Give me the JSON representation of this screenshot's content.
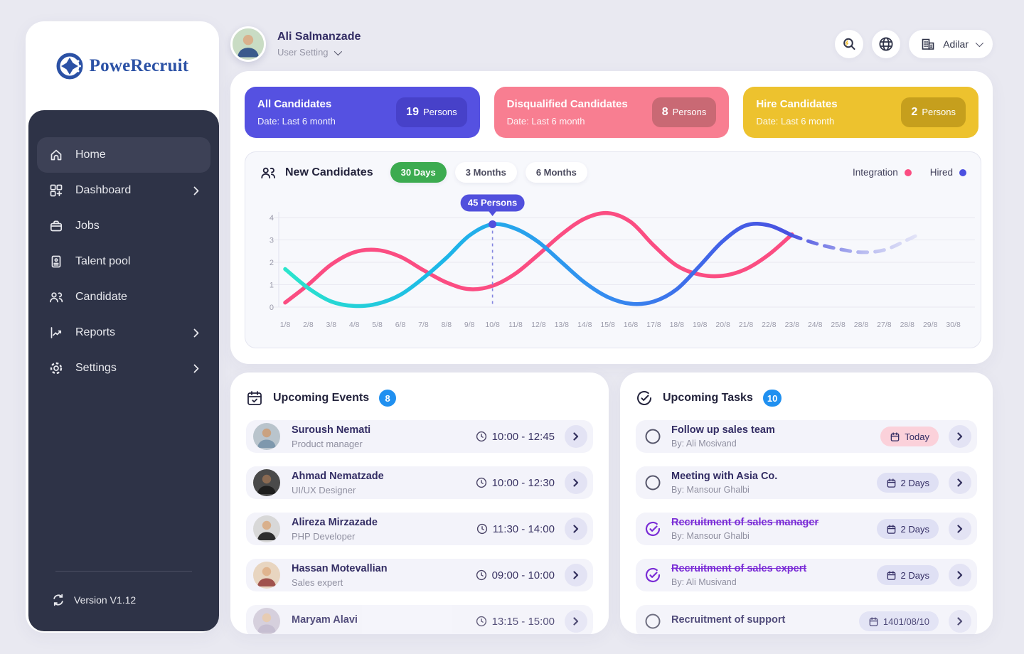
{
  "app": {
    "name": "PoweRecruit",
    "version_label": "Version V1.12"
  },
  "sidebar": {
    "items": [
      {
        "label": "Home",
        "active": true,
        "chevron": false
      },
      {
        "label": "Dashboard",
        "active": false,
        "chevron": true
      },
      {
        "label": "Jobs",
        "active": false,
        "chevron": false
      },
      {
        "label": "Talent pool",
        "active": false,
        "chevron": false
      },
      {
        "label": "Candidate",
        "active": false,
        "chevron": false
      },
      {
        "label": "Reports",
        "active": false,
        "chevron": true
      },
      {
        "label": "Settings",
        "active": false,
        "chevron": true
      }
    ]
  },
  "header": {
    "user_name": "Ali Salmanzade",
    "user_menu_label": "User Setting",
    "company_name": "Adilar"
  },
  "stats": [
    {
      "title": "All Candidates",
      "date": "Date: Last 6 month",
      "count": "19",
      "unit": "Persons",
      "bg": "#5551e1",
      "badge_bg": "#4741c9"
    },
    {
      "title": "Disqualified Candidates",
      "date": "Date: Last 6 month",
      "count": "8",
      "unit": "Persons",
      "bg": "#f87e91",
      "badge_bg": "#c96974"
    },
    {
      "title": "Hire Candidates",
      "date": "Date: Last 6 month",
      "count": "2",
      "unit": "Persons",
      "bg": "#edc22e",
      "badge_bg": "#c69f1d"
    }
  ],
  "chart_data": {
    "type": "line",
    "title": "New Candidates",
    "range_tabs": [
      "30 Days",
      "3 Months",
      "6 Months"
    ],
    "active_tab": "30 Days",
    "categories": [
      "1/8",
      "2/8",
      "3/8",
      "4/8",
      "5/8",
      "6/8",
      "7/8",
      "8/8",
      "9/8",
      "10/8",
      "11/8",
      "12/8",
      "13/8",
      "14/8",
      "15/8",
      "16/8",
      "17/8",
      "18/8",
      "19/8",
      "20/8",
      "21/8",
      "22/8",
      "23/8",
      "24/8",
      "25/8",
      "28/8",
      "27/8",
      "28/8",
      "29/8",
      "30/8"
    ],
    "yticks": [
      0,
      1,
      2,
      3,
      4
    ],
    "ylim": [
      0,
      4.5
    ],
    "grid": true,
    "legend_position": "top-right",
    "legend": [
      {
        "label": "Integration",
        "color": "#fb4d82"
      },
      {
        "label": "Hired",
        "color": "#4b50e0"
      }
    ],
    "series": [
      {
        "name": "Integration",
        "color": "#fb4d82",
        "values": [
          0.2,
          1.0,
          1.9,
          2.45,
          2.55,
          2.25,
          1.65,
          1.1,
          0.8,
          0.95,
          1.5,
          2.35,
          3.25,
          3.95,
          4.2,
          3.8,
          2.75,
          1.85,
          1.45,
          1.4,
          1.7,
          2.35,
          3.25
        ]
      },
      {
        "name": "Hired",
        "gradient": [
          "#2be5cc",
          "#1cb8e8",
          "#338ef0",
          "#4263e8",
          "#4a51e0"
        ],
        "values": [
          1.7,
          0.85,
          0.25,
          0.05,
          0.15,
          0.55,
          1.3,
          2.2,
          3.2,
          3.7,
          3.5,
          2.9,
          2.0,
          1.1,
          0.45,
          0.15,
          0.25,
          0.8,
          1.85,
          2.95,
          3.65,
          3.65,
          3.2
        ],
        "forecast": {
          "days": [
            23,
            24,
            25,
            26,
            27,
            28,
            28.6
          ],
          "values": [
            3.2,
            2.85,
            2.6,
            2.45,
            2.55,
            3.0,
            3.3
          ],
          "fade_to": "#e6e7f8"
        }
      }
    ],
    "marker": {
      "day": 10,
      "value": 3.7,
      "label": "45 Persons",
      "color": "#5150dd"
    }
  },
  "events": {
    "title": "Upcoming Events",
    "count": "8",
    "items": [
      {
        "name": "Suroush Nemati",
        "role": "Product manager",
        "time": "10:00 - 12:45"
      },
      {
        "name": "Ahmad Nematzade",
        "role": "UI/UX Designer",
        "time": "10:00 - 12:30"
      },
      {
        "name": "Alireza Mirzazade",
        "role": "PHP Developer",
        "time": "11:30 - 14:00"
      },
      {
        "name": "Hassan Motevallian",
        "role": "Sales expert",
        "time": "09:00 - 10:00"
      },
      {
        "name": "Maryam Alavi",
        "role": "",
        "time": "13:15 - 15:00"
      }
    ]
  },
  "tasks": {
    "title": "Upcoming Tasks",
    "count": "10",
    "items": [
      {
        "title": "Follow up sales team",
        "by": "By: Ali Mosivand",
        "due": "Today",
        "done": false,
        "due_style": "today"
      },
      {
        "title": "Meeting with Asia Co.",
        "by": "By: Mansour Ghalbi",
        "due": "2 Days",
        "done": false,
        "due_style": "normal"
      },
      {
        "title": "Recruitment of sales manager",
        "by": "By: Mansour Ghalbi",
        "due": "2 Days",
        "done": true,
        "due_style": "normal"
      },
      {
        "title": "Recruitment of sales expert",
        "by": "By: Ali Musivand",
        "due": "2 Days",
        "done": true,
        "due_style": "normal"
      },
      {
        "title": "Recruitment of support",
        "by": "",
        "due": "1401/08/10",
        "done": false,
        "due_style": "normal"
      }
    ]
  },
  "colors": {
    "page_bg": "#e9e9f1",
    "sidebar_bg": "#2e3347",
    "accent_indigo": "#5551e1",
    "accent_pink": "#fb4d82",
    "accent_green": "#3cab50",
    "badge_blue": "#2090f0",
    "done_purple": "#7a2cd6"
  }
}
